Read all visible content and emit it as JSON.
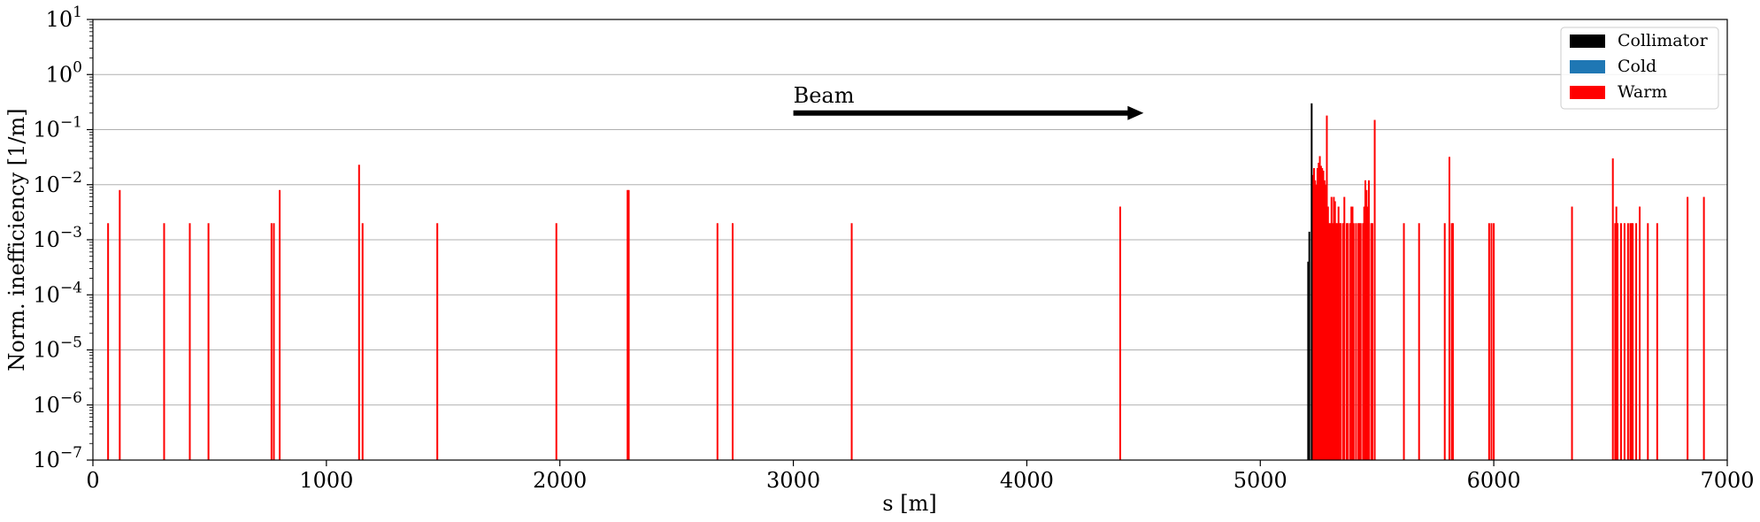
{
  "chart_data": {
    "type": "bar",
    "title": "",
    "xlabel": "s [m]",
    "ylabel": "Norm. inefficiency [1/m]",
    "xlim": [
      0,
      7000
    ],
    "ylim": [
      1e-07,
      10
    ],
    "yscale": "log",
    "grid": "y-major",
    "legend_position": "top-right",
    "x_ticks": [
      {
        "value": 0,
        "label": "0"
      },
      {
        "value": 1000,
        "label": "1000"
      },
      {
        "value": 2000,
        "label": "2000"
      },
      {
        "value": 3000,
        "label": "3000"
      },
      {
        "value": 4000,
        "label": "4000"
      },
      {
        "value": 5000,
        "label": "5000"
      },
      {
        "value": 6000,
        "label": "6000"
      },
      {
        "value": 7000,
        "label": "7000"
      }
    ],
    "y_ticks": [
      {
        "exp": -7,
        "base": "10",
        "sup": "−7"
      },
      {
        "exp": -6,
        "base": "10",
        "sup": "−6"
      },
      {
        "exp": -5,
        "base": "10",
        "sup": "−5"
      },
      {
        "exp": -4,
        "base": "10",
        "sup": "−4"
      },
      {
        "exp": -3,
        "base": "10",
        "sup": "−3"
      },
      {
        "exp": -2,
        "base": "10",
        "sup": "−2"
      },
      {
        "exp": -1,
        "base": "10",
        "sup": "−1"
      },
      {
        "exp": 0,
        "base": "10",
        "sup": "0"
      },
      {
        "exp": 1,
        "base": "10",
        "sup": "1"
      }
    ],
    "annotation": {
      "text": "Beam",
      "arrow_from_x": 3000,
      "arrow_to_x": 4500,
      "arrow_y": 0.2
    },
    "series": [
      {
        "name": "Collimator",
        "color": "#000000",
        "points": [
          [
            5205,
            0.0004
          ],
          [
            5210,
            0.0014
          ],
          [
            5220,
            0.3
          ]
        ]
      },
      {
        "name": "Cold",
        "color": "#1f77b4",
        "points": []
      },
      {
        "name": "Warm",
        "color": "#ff0000",
        "points": [
          [
            65,
            0.002
          ],
          [
            115,
            0.008
          ],
          [
            305,
            0.002
          ],
          [
            415,
            0.002
          ],
          [
            495,
            0.002
          ],
          [
            765,
            0.002
          ],
          [
            775,
            0.002
          ],
          [
            800,
            0.008
          ],
          [
            1140,
            0.023
          ],
          [
            1155,
            0.002
          ],
          [
            1475,
            0.002
          ],
          [
            1985,
            0.002
          ],
          [
            2290,
            0.008
          ],
          [
            2295,
            0.008
          ],
          [
            2675,
            0.002
          ],
          [
            2740,
            0.002
          ],
          [
            3250,
            0.002
          ],
          [
            4400,
            0.004
          ],
          [
            5225,
            0.015
          ],
          [
            5230,
            0.02
          ],
          [
            5235,
            0.012
          ],
          [
            5240,
            0.01
          ],
          [
            5245,
            0.02
          ],
          [
            5250,
            0.025
          ],
          [
            5255,
            0.033
          ],
          [
            5260,
            0.022
          ],
          [
            5265,
            0.02
          ],
          [
            5270,
            0.018
          ],
          [
            5275,
            0.012
          ],
          [
            5280,
            0.01
          ],
          [
            5285,
            0.18
          ],
          [
            5290,
            0.004
          ],
          [
            5295,
            0.002
          ],
          [
            5300,
            0.002
          ],
          [
            5305,
            0.006
          ],
          [
            5310,
            0.002
          ],
          [
            5315,
            0.006
          ],
          [
            5320,
            0.005
          ],
          [
            5325,
            0.002
          ],
          [
            5330,
            0.002
          ],
          [
            5335,
            0.004
          ],
          [
            5340,
            0.002
          ],
          [
            5345,
            0.002
          ],
          [
            5355,
            0.002
          ],
          [
            5360,
            0.006
          ],
          [
            5370,
            0.002
          ],
          [
            5375,
            0.002
          ],
          [
            5385,
            0.002
          ],
          [
            5390,
            0.004
          ],
          [
            5395,
            0.004
          ],
          [
            5400,
            0.002
          ],
          [
            5410,
            0.002
          ],
          [
            5420,
            0.002
          ],
          [
            5425,
            0.002
          ],
          [
            5430,
            0.002
          ],
          [
            5440,
            0.002
          ],
          [
            5445,
            0.004
          ],
          [
            5450,
            0.012
          ],
          [
            5455,
            0.008
          ],
          [
            5460,
            0.004
          ],
          [
            5465,
            0.012
          ],
          [
            5475,
            0.002
          ],
          [
            5480,
            0.002
          ],
          [
            5490,
            0.15
          ],
          [
            5615,
            0.002
          ],
          [
            5680,
            0.002
          ],
          [
            5790,
            0.002
          ],
          [
            5810,
            0.032
          ],
          [
            5820,
            0.002
          ],
          [
            5825,
            0.002
          ],
          [
            5980,
            0.002
          ],
          [
            5990,
            0.002
          ],
          [
            6000,
            0.002
          ],
          [
            6335,
            0.004
          ],
          [
            6510,
            0.03
          ],
          [
            6520,
            0.002
          ],
          [
            6525,
            0.004
          ],
          [
            6530,
            0.002
          ],
          [
            6545,
            0.002
          ],
          [
            6560,
            0.002
          ],
          [
            6575,
            0.002
          ],
          [
            6585,
            0.002
          ],
          [
            6590,
            0.002
          ],
          [
            6595,
            0.002
          ],
          [
            6610,
            0.002
          ],
          [
            6625,
            0.004
          ],
          [
            6660,
            0.002
          ],
          [
            6700,
            0.002
          ],
          [
            6830,
            0.006
          ],
          [
            6900,
            0.006
          ]
        ]
      }
    ]
  }
}
